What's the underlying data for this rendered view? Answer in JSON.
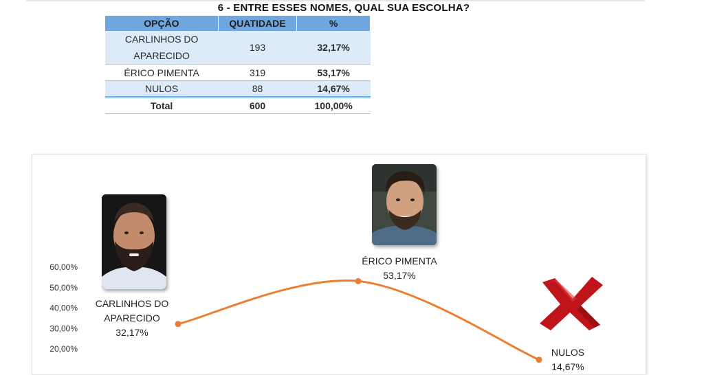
{
  "title": "6 - ENTRE ESSES NOMES, QUAL SUA ESCOLHA?",
  "table": {
    "headers": [
      "OPÇÃO",
      "QUATIDADE",
      "%"
    ],
    "rows": [
      {
        "option_line1": "CARLINHOS DO",
        "option_line2": "APARECIDO",
        "quantity": "193",
        "percent": "32,17%"
      },
      {
        "option": "ÉRICO PIMENTA",
        "quantity": "319",
        "percent": "53,17%"
      },
      {
        "option": "NULOS",
        "quantity": "88",
        "percent": "14,67%"
      }
    ],
    "total": {
      "label": "Total",
      "quantity": "600",
      "percent": "100,00%"
    }
  },
  "colors": {
    "header": "#6ea6df",
    "row_alt": "#ddeaf7",
    "accent": "#e07a2a",
    "line": "#ed7d31",
    "cross": "#c0141b"
  },
  "chart_data": {
    "type": "line",
    "categories": [
      "CARLINHOS DO APARECIDO",
      "ÉRICO PIMENTA",
      "NULOS"
    ],
    "values": [
      32.17,
      53.17,
      14.67
    ],
    "data_labels": [
      {
        "name_lines": [
          "CARLINHOS DO",
          "APARECIDO"
        ],
        "value": "32,17%"
      },
      {
        "name_lines": [
          "ÉRICO PIMENTA"
        ],
        "value": "53,17%"
      },
      {
        "name_lines": [
          "NULOS"
        ],
        "value": "14,67%"
      }
    ],
    "y_ticks": [
      "20,00%",
      "30,00%",
      "40,00%",
      "50,00%",
      "60,00%"
    ],
    "y_tick_values": [
      20,
      30,
      40,
      50,
      60
    ],
    "smooth": true,
    "grid": false,
    "legend": "none",
    "icons": [
      "candidate-photo",
      "candidate-photo",
      "red-x-icon"
    ]
  }
}
